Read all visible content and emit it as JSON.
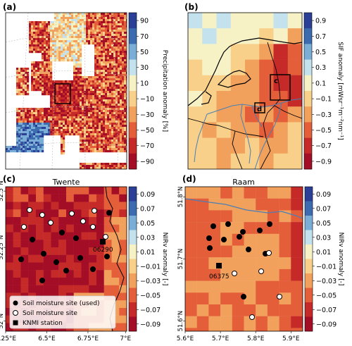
{
  "panels": [
    {
      "id": "a",
      "label": "(a)",
      "title": "",
      "colorbar": {
        "label": "Precipitation anomaly [%]",
        "ticks": [
          "90",
          "70",
          "50",
          "30",
          "10",
          "−10",
          "−30",
          "−50",
          "−70",
          "−90"
        ],
        "colors": [
          "#2c3f96",
          "#3d6bb0",
          "#7aaed6",
          "#c4e2ee",
          "#f6f2c6",
          "#f8d08a",
          "#f2a15c",
          "#e45e3a",
          "#c52a28",
          "#a30d26"
        ]
      }
    },
    {
      "id": "b",
      "label": "(b)",
      "title": "",
      "boxes": [
        "c",
        "d"
      ],
      "colorbar": {
        "label": "SIF anomaly [mWsr⁻¹m⁻²nm⁻¹]",
        "ticks": [
          "0.9",
          "0.7",
          "0.5",
          "0.3",
          "0.1",
          "−0.1",
          "−0.3",
          "−0.5",
          "−0.7",
          "−0.9"
        ],
        "colors": [
          "#2c3f96",
          "#3d6bb0",
          "#7aaed6",
          "#c4e2ee",
          "#f6f2c6",
          "#f8d08a",
          "#f2a15c",
          "#e45e3a",
          "#c52a28",
          "#a30d26"
        ]
      }
    },
    {
      "id": "c",
      "label": "(c)",
      "title": "Twente",
      "x_ticks": [
        "6.25°E",
        "6.5°E",
        "6.75°E",
        "7°E"
      ],
      "y_ticks": [
        "52.5°N",
        "52.25°N",
        "52°N"
      ],
      "station_label": "06290",
      "colorbar": {
        "label": "NIRv anomaly [-]",
        "ticks": [
          "0.09",
          "0.07",
          "0.05",
          "0.03",
          "0.01",
          "−0.01",
          "−0.03",
          "−0.05",
          "−0.07",
          "−0.09"
        ],
        "colors": [
          "#2c3f96",
          "#3d6bb0",
          "#7aaed6",
          "#c4e2ee",
          "#f6f2c6",
          "#f8d08a",
          "#f2a15c",
          "#e45e3a",
          "#c52a28",
          "#a30d26"
        ]
      },
      "legend": [
        {
          "marker": "filled-circle",
          "label": "Soil moisture site (used)"
        },
        {
          "marker": "open-circle",
          "label": "Soil moisture site"
        },
        {
          "marker": "square",
          "label": "KNMI station"
        }
      ]
    },
    {
      "id": "d",
      "label": "(d)",
      "title": "Raam",
      "x_ticks": [
        "5.6°E",
        "5.7°E",
        "5.8°E",
        "5.9°E"
      ],
      "y_ticks": [
        "51.8°N",
        "51.7°N",
        "51.6°N"
      ],
      "station_label": "06375",
      "colorbar": {
        "label": "NIRv anomaly [-]",
        "ticks": [
          "0.09",
          "0.07",
          "0.05",
          "0.03",
          "0.01",
          "−0.01",
          "−0.03",
          "−0.05",
          "−0.07",
          "−0.09"
        ],
        "colors": [
          "#2c3f96",
          "#3d6bb0",
          "#7aaed6",
          "#c4e2ee",
          "#f6f2c6",
          "#f8d08a",
          "#f2a15c",
          "#e45e3a",
          "#c52a28",
          "#a30d26"
        ]
      }
    }
  ]
}
